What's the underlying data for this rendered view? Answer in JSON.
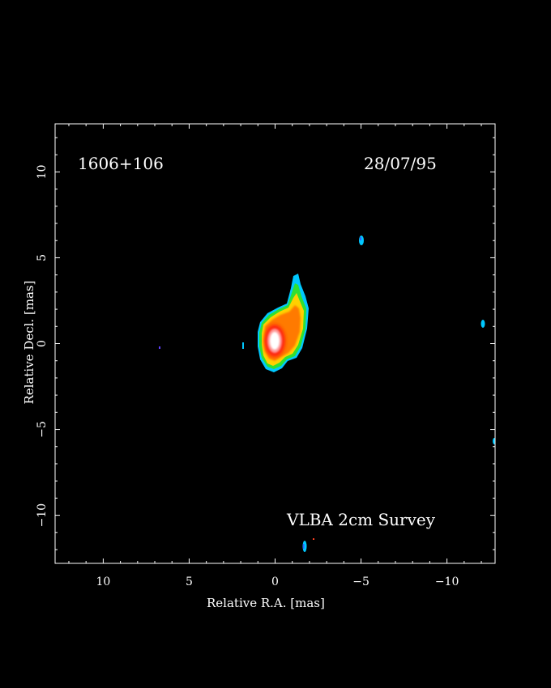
{
  "image": {
    "source_name": "1606+106",
    "epoch": "28/07/95",
    "survey": "VLBA 2cm Survey",
    "xlabel": "Relative R.A. [mas]",
    "ylabel": "Relative Decl. [mas]",
    "xlim": [
      12.8,
      -12.8
    ],
    "ylim": [
      -12.8,
      12.8
    ],
    "x_ticks": [
      {
        "value": 10,
        "label": "10"
      },
      {
        "value": 5,
        "label": "5"
      },
      {
        "value": 0,
        "label": "0"
      },
      {
        "value": -5,
        "label": "−5"
      },
      {
        "value": -10,
        "label": "−10"
      }
    ],
    "y_ticks": [
      {
        "value": 10,
        "label": "10"
      },
      {
        "value": 5,
        "label": "5"
      },
      {
        "value": 0,
        "label": "0"
      },
      {
        "value": -5,
        "label": "−5"
      },
      {
        "value": -10,
        "label": "−10"
      }
    ],
    "colors": {
      "background": "#000000",
      "axes": "#ffffff",
      "core": "#ffffff",
      "peak": "#ff2010",
      "high": "#ff7a00",
      "mid": "#ffd000",
      "low": "#30e030",
      "faint": "#00c8ff",
      "noise": "#3060ff"
    }
  }
}
